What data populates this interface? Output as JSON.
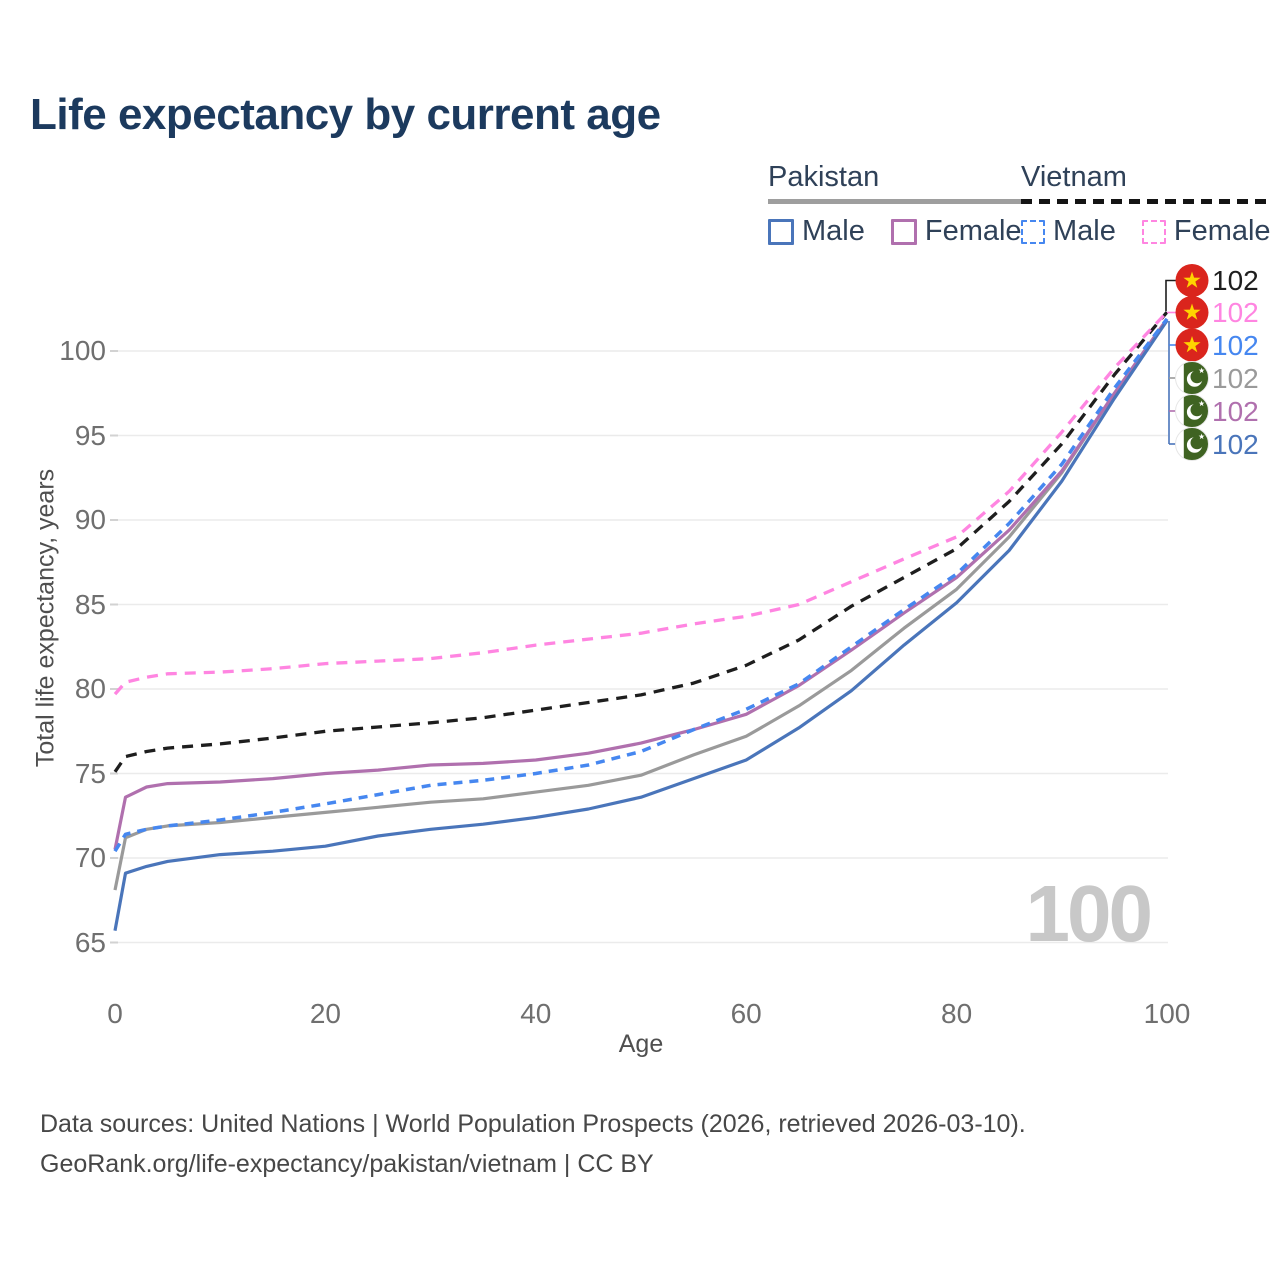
{
  "title": "Life expectancy by current age",
  "watermark": "100",
  "legend": {
    "groups": [
      {
        "label": "Pakistan",
        "line_style": "solid",
        "underline_color": "#9e9e9e",
        "items": [
          {
            "label": "Male",
            "color": "#4a75ba",
            "dashed": false
          },
          {
            "label": "Female",
            "color": "#b070ae",
            "dashed": false
          }
        ]
      },
      {
        "label": "Vietnam",
        "line_style": "dashed",
        "underline_color": "#141414",
        "items": [
          {
            "label": "Male",
            "color": "#4687f0",
            "dashed": true
          },
          {
            "label": "Female",
            "color": "#ff85e1",
            "dashed": true
          }
        ]
      }
    ]
  },
  "chart_data": {
    "type": "line",
    "title": "Life expectancy by current age",
    "xlabel": "Age",
    "ylabel": "Total life expectancy, years",
    "xlim": [
      0,
      100
    ],
    "ylim": [
      63.5,
      104.5
    ],
    "x_ticks": [
      0,
      20,
      40,
      60,
      80,
      100
    ],
    "y_ticks": [
      65,
      70,
      75,
      80,
      85,
      90,
      95,
      100
    ],
    "grid": "horizontal",
    "legend_position": "top-right",
    "x": [
      0,
      1,
      3,
      5,
      10,
      15,
      20,
      25,
      30,
      35,
      40,
      45,
      50,
      55,
      60,
      65,
      70,
      75,
      80,
      85,
      90,
      95,
      100
    ],
    "series": [
      {
        "name": "Pakistan All",
        "country": "Pakistan",
        "sex": "All",
        "color": "#9a9a9a",
        "dash": null,
        "width": 3.2,
        "values": [
          68.1,
          71.2,
          71.7,
          71.9,
          72.1,
          72.4,
          72.7,
          73.0,
          73.3,
          73.5,
          73.9,
          74.3,
          74.9,
          76.1,
          77.2,
          79.0,
          81.1,
          83.6,
          85.9,
          89.0,
          92.8,
          97.5,
          101.8
        ]
      },
      {
        "name": "Pakistan Female",
        "country": "Pakistan",
        "sex": "Female",
        "color": "#b070ae",
        "dash": null,
        "width": 3.2,
        "values": [
          70.5,
          73.6,
          74.2,
          74.4,
          74.5,
          74.7,
          75.0,
          75.2,
          75.5,
          75.6,
          75.8,
          76.2,
          76.8,
          77.6,
          78.5,
          80.2,
          82.3,
          84.5,
          86.6,
          89.4,
          92.9,
          97.5,
          101.9
        ]
      },
      {
        "name": "Pakistan Male",
        "country": "Pakistan",
        "sex": "Male",
        "color": "#4a75ba",
        "dash": null,
        "width": 3.2,
        "values": [
          65.7,
          69.1,
          69.5,
          69.8,
          70.2,
          70.4,
          70.7,
          71.3,
          71.7,
          72.0,
          72.4,
          72.9,
          73.6,
          74.7,
          75.8,
          77.7,
          79.9,
          82.6,
          85.1,
          88.2,
          92.3,
          97.2,
          101.8
        ]
      },
      {
        "name": "Vietnam All",
        "country": "Vietnam",
        "sex": "All",
        "color": "#1e1e1e",
        "dash": "11 8",
        "width": 3.3,
        "values": [
          75.1,
          76.0,
          76.3,
          76.5,
          76.75,
          77.1,
          77.5,
          77.75,
          78.0,
          78.3,
          78.75,
          79.2,
          79.65,
          80.35,
          81.4,
          82.9,
          84.9,
          86.6,
          88.3,
          91.1,
          94.5,
          98.6,
          102.3
        ]
      },
      {
        "name": "Vietnam Female",
        "country": "Vietnam",
        "sex": "Female",
        "color": "#ff85e1",
        "dash": "11 8",
        "width": 3.3,
        "values": [
          79.7,
          80.4,
          80.7,
          80.9,
          81.0,
          81.2,
          81.5,
          81.65,
          81.8,
          82.15,
          82.6,
          82.95,
          83.3,
          83.85,
          84.3,
          85.0,
          86.35,
          87.7,
          89.0,
          91.7,
          95.2,
          99.0,
          102.3
        ]
      },
      {
        "name": "Vietnam Male",
        "country": "Vietnam",
        "sex": "Male",
        "color": "#4687f0",
        "dash": "9 7",
        "width": 3.5,
        "values": [
          70.4,
          71.4,
          71.7,
          71.9,
          72.25,
          72.7,
          73.2,
          73.75,
          74.3,
          74.6,
          75.0,
          75.5,
          76.3,
          77.6,
          78.8,
          80.3,
          82.5,
          84.7,
          86.8,
          89.8,
          93.3,
          97.8,
          101.9
        ]
      }
    ]
  },
  "end_labels": [
    {
      "flag": "vietnam",
      "series": "Vietnam All",
      "value": "102",
      "color": "#1e1e1e"
    },
    {
      "flag": "vietnam",
      "series": "Vietnam Female",
      "value": "102",
      "color": "#ff85e1"
    },
    {
      "flag": "vietnam",
      "series": "Vietnam Male",
      "value": "102",
      "color": "#4687f0"
    },
    {
      "flag": "pakistan",
      "series": "Pakistan All",
      "value": "102",
      "color": "#9a9a9a"
    },
    {
      "flag": "pakistan",
      "series": "Pakistan Female",
      "value": "102",
      "color": "#b070ae"
    },
    {
      "flag": "pakistan",
      "series": "Pakistan Male",
      "value": "102",
      "color": "#4a75ba"
    }
  ],
  "flag_colors": {
    "vietnam_red": "#da251d",
    "vietnam_star_yellow": "#ffd400",
    "pakistan_green": "#3f6322",
    "pakistan_white": "#ffffff"
  },
  "footer": {
    "line1": "Data sources: United Nations | World Population Prospects (2026, retrieved 2026-03-10).",
    "line2": "GeoRank.org/life-expectancy/pakistan/vietnam | CC BY"
  }
}
